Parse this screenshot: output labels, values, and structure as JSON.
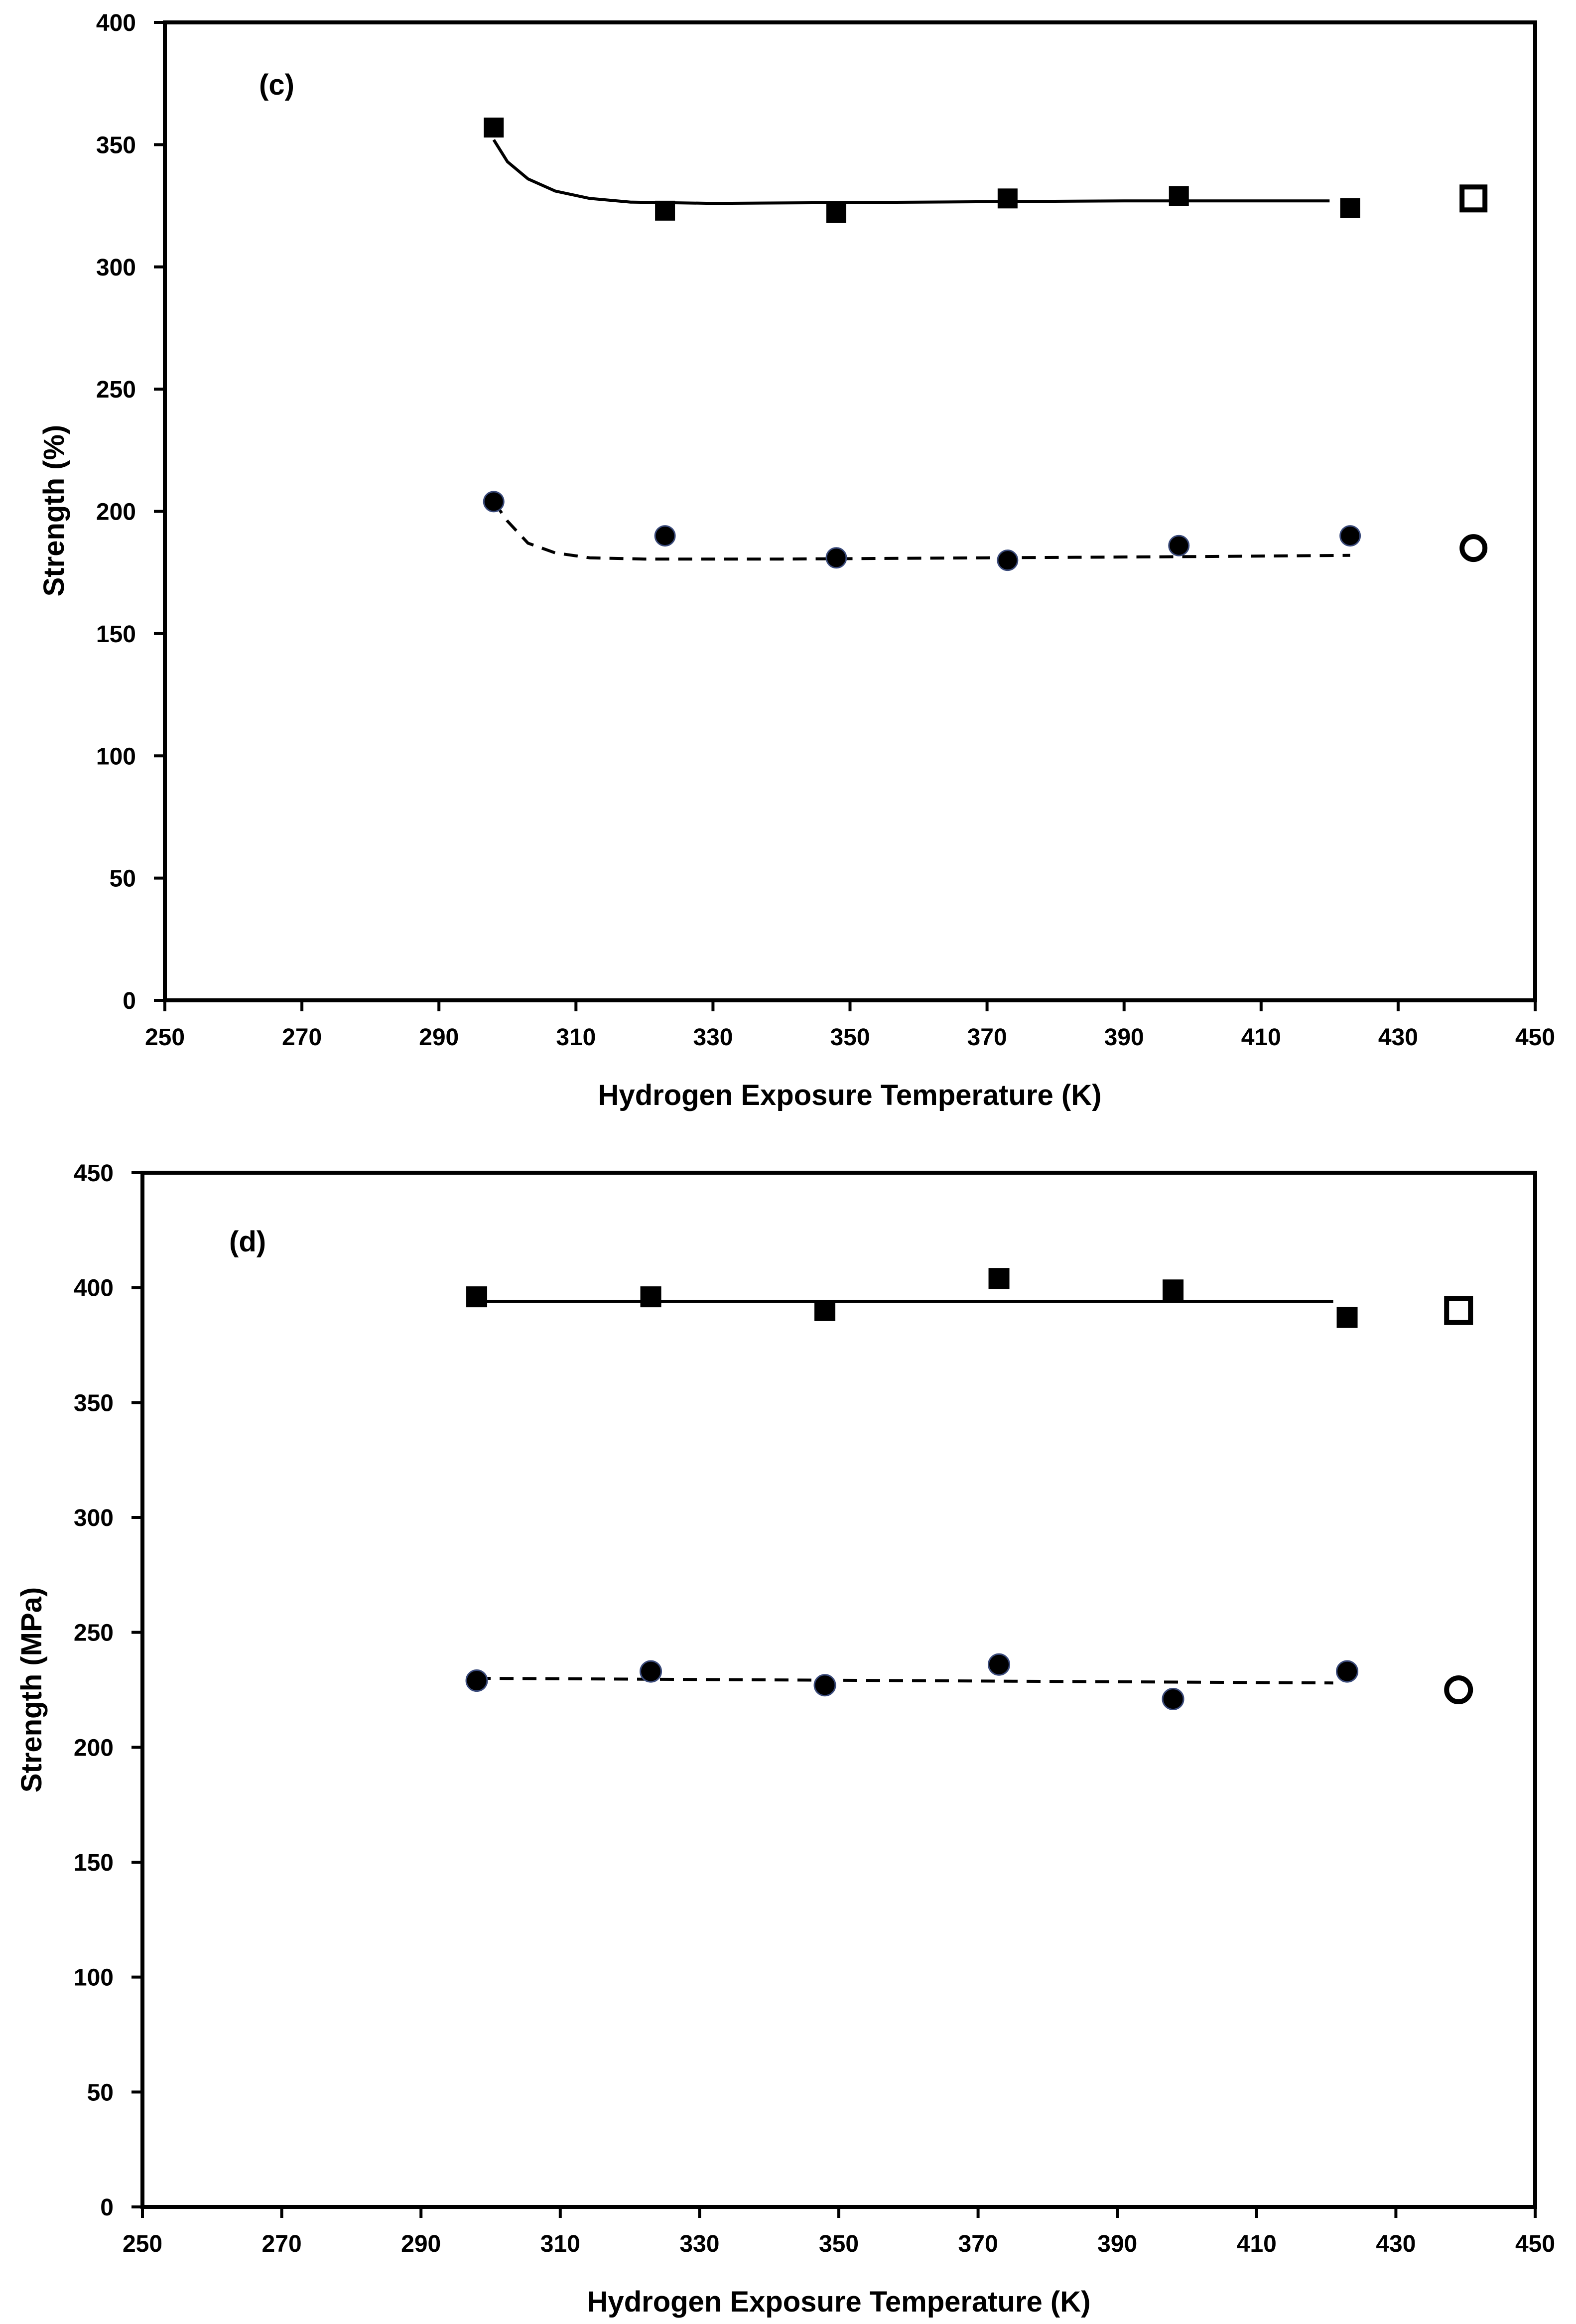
{
  "chart_data": [
    {
      "type": "scatter",
      "panel_label": "(c)",
      "title": "",
      "xlabel": "Hydrogen Exposure Temperature (K)",
      "ylabel": "Strength (%)",
      "xlim": [
        250,
        450
      ],
      "ylim": [
        0,
        400
      ],
      "xticks": [
        "250",
        "270",
        "290",
        "310",
        "330",
        "350",
        "370",
        "390",
        "410",
        "430",
        "450"
      ],
      "yticks": [
        "0",
        "50",
        "100",
        "150",
        "200",
        "250",
        "300",
        "350",
        "400"
      ],
      "grid": false,
      "series": [
        {
          "name": "upper (filled squares)",
          "marker": "square",
          "filled": true,
          "x": [
            298,
            323,
            348,
            373,
            398,
            423
          ],
          "y": [
            357,
            323,
            322,
            328,
            329,
            324
          ]
        },
        {
          "name": "lower (filled circles)",
          "marker": "circle",
          "filled": true,
          "x": [
            298,
            323,
            348,
            373,
            398,
            423
          ],
          "y": [
            204,
            190,
            181,
            180,
            186,
            190
          ]
        },
        {
          "name": "reference (open square)",
          "marker": "square",
          "filled": false,
          "x": [
            441
          ],
          "y": [
            328
          ]
        },
        {
          "name": "reference (open circle)",
          "marker": "circle",
          "filled": false,
          "x": [
            441
          ],
          "y": [
            185
          ]
        }
      ],
      "fit_lines": [
        {
          "name": "upper trend",
          "style": "solid",
          "x": [
            298,
            300,
            303,
            307,
            312,
            318,
            330,
            360,
            390,
            420
          ],
          "y": [
            352,
            343,
            336,
            331,
            328,
            326.5,
            326,
            326.5,
            327,
            327
          ]
        },
        {
          "name": "lower trend",
          "style": "dashed",
          "x": [
            298,
            300,
            303,
            307,
            312,
            320,
            340,
            370,
            400,
            423
          ],
          "y": [
            204,
            196,
            187,
            183,
            181,
            180.5,
            180.5,
            181,
            181.5,
            182
          ]
        }
      ]
    },
    {
      "type": "scatter",
      "panel_label": "(d)",
      "title": "",
      "xlabel": "Hydrogen Exposure Temperature (K)",
      "ylabel": "Strength (MPa)",
      "xlim": [
        250,
        450
      ],
      "ylim": [
        0,
        450
      ],
      "xticks": [
        "250",
        "270",
        "290",
        "310",
        "330",
        "350",
        "370",
        "390",
        "410",
        "430",
        "450"
      ],
      "yticks": [
        "0",
        "50",
        "100",
        "150",
        "200",
        "250",
        "300",
        "350",
        "400",
        "450"
      ],
      "grid": false,
      "series": [
        {
          "name": "upper (filled squares)",
          "marker": "square",
          "filled": true,
          "x": [
            298,
            323,
            348,
            373,
            398,
            423
          ],
          "y": [
            396,
            396,
            390,
            404,
            399,
            387
          ]
        },
        {
          "name": "lower (filled circles)",
          "marker": "circle",
          "filled": true,
          "x": [
            298,
            323,
            348,
            373,
            398,
            423
          ],
          "y": [
            229,
            233,
            227,
            236,
            221,
            233
          ]
        },
        {
          "name": "reference (open square)",
          "marker": "square",
          "filled": false,
          "x": [
            439
          ],
          "y": [
            390
          ]
        },
        {
          "name": "reference (open circle)",
          "marker": "circle",
          "filled": false,
          "x": [
            439
          ],
          "y": [
            225
          ]
        }
      ],
      "fit_lines": [
        {
          "name": "upper trend",
          "style": "solid",
          "x": [
            298,
            421
          ],
          "y": [
            394,
            394
          ]
        },
        {
          "name": "lower trend",
          "style": "dashed",
          "x": [
            298,
            421
          ],
          "y": [
            230,
            228
          ]
        }
      ]
    }
  ]
}
